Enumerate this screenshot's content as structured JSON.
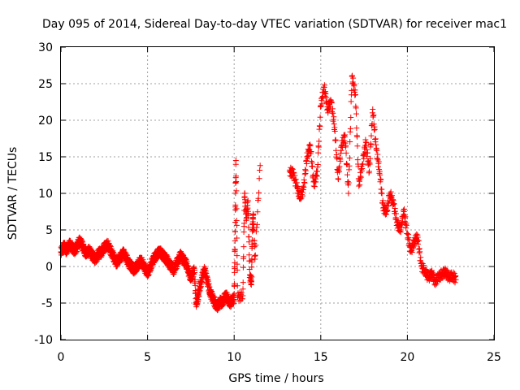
{
  "chart_data": {
    "type": "scatter",
    "title": "Day 095 of 2014, Sidereal Day-to-day VTEC variation (SDTVAR) for receiver mac1",
    "xlabel": "GPS time / hours",
    "ylabel": "SDTVAR / TECUs",
    "xlim": [
      0,
      25
    ],
    "ylim": [
      -10,
      30
    ],
    "xticks": [
      0,
      5,
      10,
      15,
      20,
      25
    ],
    "yticks": [
      -10,
      -5,
      0,
      5,
      10,
      15,
      20,
      25,
      30
    ],
    "xtick_labels": [
      "0",
      "5",
      "10",
      "15",
      "20",
      "25"
    ],
    "ytick_labels": [
      "-10",
      "-5",
      "0",
      "5",
      "10",
      "15",
      "20",
      "25",
      "30"
    ],
    "grid": true,
    "marker": "+",
    "marker_color": "#ff0000",
    "series": [
      {
        "name": "SDTVAR",
        "x": [
          0.0,
          0.1,
          0.2,
          0.3,
          0.4,
          0.5,
          0.6,
          0.7,
          0.8,
          0.9,
          1.0,
          1.1,
          1.2,
          1.3,
          1.4,
          1.5,
          1.6,
          1.7,
          1.8,
          1.9,
          2.0,
          2.1,
          2.2,
          2.3,
          2.4,
          2.5,
          2.6,
          2.7,
          2.8,
          2.9,
          3.0,
          3.1,
          3.2,
          3.3,
          3.4,
          3.5,
          3.6,
          3.7,
          3.8,
          3.9,
          4.0,
          4.1,
          4.2,
          4.3,
          4.4,
          4.5,
          4.6,
          4.7,
          4.8,
          4.9,
          5.0,
          5.1,
          5.2,
          5.3,
          5.4,
          5.5,
          5.6,
          5.7,
          5.8,
          5.9,
          6.0,
          6.1,
          6.2,
          6.3,
          6.4,
          6.5,
          6.6,
          6.7,
          6.8,
          6.9,
          7.0,
          7.1,
          7.2,
          7.3,
          7.4,
          7.5,
          7.6,
          7.7,
          7.8,
          7.9,
          8.0,
          8.1,
          8.2,
          8.3,
          8.4,
          8.5,
          8.6,
          8.7,
          8.8,
          8.9,
          9.0,
          9.1,
          9.2,
          9.3,
          9.4,
          9.5,
          9.6,
          9.7,
          9.8,
          9.9,
          10.0,
          10.05,
          10.1,
          10.2,
          10.5,
          10.6,
          10.7,
          10.8,
          10.9,
          11.0,
          11.05,
          11.1,
          11.2,
          11.5,
          13.2,
          13.4,
          13.6,
          13.8,
          14.0,
          14.2,
          14.4,
          14.6,
          14.8,
          15.0,
          15.2,
          15.4,
          15.6,
          15.8,
          16.0,
          16.2,
          16.4,
          16.6,
          16.8,
          17.0,
          17.2,
          17.4,
          17.6,
          17.8,
          18.0,
          18.2,
          18.4,
          18.6,
          18.8,
          19.0,
          19.2,
          19.4,
          19.6,
          19.8,
          20.0,
          20.2,
          20.4,
          20.6,
          20.8,
          21.0,
          21.2,
          21.4,
          21.6,
          21.8,
          22.0,
          22.2,
          22.4,
          22.6,
          22.8
        ],
        "y": [
          2.0,
          2.5,
          2.8,
          2.2,
          2.6,
          3.0,
          2.8,
          2.4,
          2.2,
          2.6,
          3.2,
          3.5,
          3.0,
          2.5,
          2.0,
          1.8,
          2.2,
          2.0,
          1.5,
          1.2,
          1.0,
          1.4,
          2.0,
          1.8,
          2.2,
          2.6,
          2.8,
          3.0,
          2.5,
          2.0,
          1.5,
          1.0,
          0.5,
          0.8,
          1.2,
          1.5,
          1.8,
          1.5,
          1.0,
          0.5,
          0.2,
          0.0,
          -0.5,
          -0.2,
          0.0,
          0.5,
          0.8,
          0.5,
          0.0,
          -0.5,
          -0.8,
          -0.5,
          0.2,
          0.8,
          1.2,
          1.5,
          1.8,
          2.0,
          1.8,
          1.5,
          1.2,
          1.0,
          0.5,
          0.2,
          0.0,
          -0.5,
          0.0,
          0.5,
          1.0,
          1.5,
          1.2,
          0.8,
          0.5,
          0.0,
          -1.0,
          -1.5,
          -1.0,
          -0.5,
          -5.0,
          -4.5,
          -3.0,
          -2.0,
          -1.0,
          -0.5,
          -1.5,
          -2.5,
          -3.5,
          -4.0,
          -4.5,
          -5.0,
          -5.5,
          -5.2,
          -4.8,
          -5.0,
          -4.5,
          -4.0,
          -4.2,
          -4.8,
          -5.0,
          -4.5,
          -4.5,
          3.5,
          14.5,
          -4.2,
          -4.0,
          10.0,
          6.5,
          9.0,
          -1.5,
          -2.0,
          5.0,
          7.0,
          1.0,
          13.8,
          13.0,
          12.8,
          11.0,
          9.5,
          10.5,
          15.0,
          16.5,
          11.0,
          13.0,
          22.0,
          24.5,
          21.5,
          22.5,
          19.0,
          12.0,
          16.5,
          18.0,
          10.0,
          26.0,
          23.5,
          11.0,
          14.0,
          17.0,
          13.0,
          21.5,
          16.0,
          13.0,
          8.0,
          7.5,
          10.0,
          8.5,
          6.0,
          5.0,
          7.5,
          4.5,
          2.0,
          3.5,
          4.0,
          0.0,
          -0.5,
          -1.5,
          -1.0,
          -2.0,
          -1.5,
          -1.0,
          -0.8,
          -1.5,
          -1.2,
          -1.8
        ]
      }
    ]
  }
}
